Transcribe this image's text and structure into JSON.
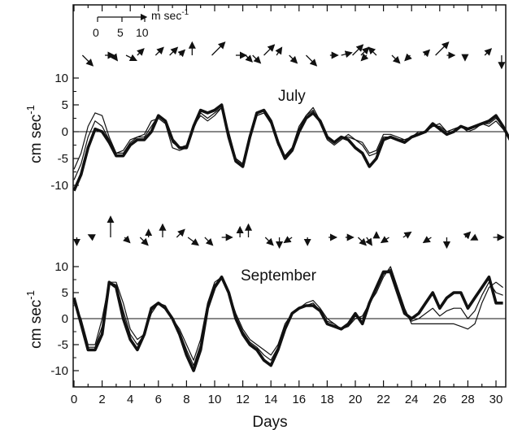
{
  "chart_data": [
    {
      "type": "line",
      "title": "July",
      "xlabel": "",
      "ylabel": "cm sec",
      "ylabel_exponent": "-1",
      "ylim": [
        -12,
        12
      ],
      "yticks": [
        10,
        5,
        0,
        -5,
        -10
      ],
      "xlim": [
        0,
        31
      ],
      "series": [
        {
          "x": [
            0,
            0.5,
            1,
            1.5,
            2,
            2.5,
            3,
            3.5,
            4,
            4.5,
            5,
            5.5,
            6,
            6.5,
            7,
            7.5,
            8,
            8.5,
            9,
            9.5,
            10,
            10.5,
            11,
            11.5,
            12,
            12.5,
            13,
            13.5,
            14,
            14.5,
            15,
            15.5,
            16,
            16.5,
            17,
            17.5,
            18,
            18.5,
            19,
            19.5,
            20,
            20.5,
            21,
            21.5,
            22,
            22.5,
            23,
            23.5,
            24,
            24.5,
            25,
            25.5,
            26,
            26.5,
            27,
            27.5,
            28,
            28.5,
            29,
            29.5,
            30,
            30.5,
            31
          ],
          "values": [
            -11,
            -8,
            -3,
            0.5,
            0,
            -2,
            -4.5,
            -4.5,
            -2.5,
            -1.5,
            -1.5,
            0,
            3,
            2,
            -1.5,
            -3,
            -3,
            1,
            4,
            3.5,
            4,
            5,
            -1,
            -5.5,
            -6.5,
            -1,
            3.5,
            4,
            2,
            -2,
            -5,
            -3.5,
            0,
            2.5,
            3.5,
            2,
            -1,
            -2,
            -1,
            -1.5,
            -3,
            -4,
            -6.5,
            -5,
            -1.5,
            -1,
            -1.5,
            -2,
            -1,
            -0.5,
            0,
            1.5,
            0.5,
            -0.5,
            0,
            1,
            0.5,
            1,
            1.5,
            2,
            3,
            1,
            -1.5
          ]
        },
        {
          "x": [
            0,
            0.5,
            1,
            1.5,
            2,
            2.5,
            3,
            3.5,
            4,
            4.5,
            5,
            5.5,
            6,
            6.5,
            7,
            7.5,
            8,
            8.5,
            9,
            9.5,
            10,
            10.5,
            11,
            11.5,
            12,
            12.5,
            13,
            13.5,
            14,
            14.5,
            15,
            15.5,
            16,
            16.5,
            17,
            17.5,
            18,
            18.5,
            19,
            19.5,
            20,
            20.5,
            21,
            21.5,
            22,
            22.5,
            23,
            23.5,
            24,
            24.5,
            25,
            25.5,
            26,
            26.5,
            27,
            27.5,
            28,
            28.5,
            29,
            29.5,
            30,
            30.5,
            31
          ],
          "values": [
            -7,
            -4,
            1,
            3.5,
            3,
            -1,
            -4,
            -3.5,
            -1.5,
            -1,
            -0.5,
            2,
            2.5,
            1.5,
            -3,
            -3.5,
            -3,
            1,
            3,
            2,
            3,
            4.5,
            0,
            -5,
            -6,
            -1.5,
            3,
            3.5,
            1.5,
            -2.5,
            -4.5,
            -3,
            1,
            3,
            4,
            1.5,
            -1.5,
            -2.5,
            -1.5,
            -0.5,
            -1.5,
            -2,
            -4,
            -3.5,
            -0.5,
            -0.5,
            -1,
            -1.5,
            -1,
            0,
            0,
            1,
            1.5,
            0,
            0.5,
            1,
            0,
            0.5,
            1.5,
            1,
            2,
            0.5,
            -1.5
          ]
        },
        {
          "x": [
            0,
            0.5,
            1,
            1.5,
            2,
            2.5,
            3,
            3.5,
            4,
            4.5,
            5,
            5.5,
            6,
            6.5,
            7,
            7.5,
            8,
            8.5,
            9,
            9.5,
            10,
            10.5,
            11,
            11.5,
            12,
            12.5,
            13,
            13.5,
            14,
            14.5,
            15,
            15.5,
            16,
            16.5,
            17,
            17.5,
            18,
            18.5,
            19,
            19.5,
            20,
            20.5,
            21,
            21.5,
            22,
            22.5,
            23,
            23.5,
            24,
            24.5,
            25,
            25.5,
            26,
            26.5,
            27,
            27.5,
            28,
            28.5,
            29,
            29.5,
            30,
            30.5,
            31
          ],
          "values": [
            -9,
            -6,
            -1,
            2,
            1,
            -1.5,
            -4,
            -4,
            -2,
            -1,
            -1,
            1,
            3,
            2,
            -2,
            -3,
            -2.5,
            1,
            3.5,
            2.5,
            3.5,
            4.5,
            -0.5,
            -5,
            -6,
            -1,
            3,
            3.5,
            2,
            -2,
            -4.5,
            -3,
            0.5,
            3,
            4.5,
            2,
            -1,
            -2,
            -1,
            -1,
            -1.5,
            -2.5,
            -4.5,
            -4,
            -1,
            -1,
            -1.5,
            -1.5,
            -1,
            -0.5,
            0,
            1,
            1,
            0,
            0.5,
            1,
            0.5,
            1,
            1.5,
            1.5,
            2.5,
            1,
            -1.5
          ]
        }
      ]
    },
    {
      "type": "line",
      "title": "September",
      "xlabel": "Days",
      "ylabel": "cm sec",
      "ylabel_exponent": "-1",
      "ylim": [
        -12,
        12
      ],
      "yticks": [
        10,
        5,
        0,
        -5,
        -10
      ],
      "xlim": [
        0,
        31
      ],
      "xticks": [
        0,
        2,
        4,
        6,
        8,
        10,
        12,
        14,
        16,
        18,
        20,
        22,
        24,
        26,
        28,
        30
      ],
      "series": [
        {
          "x": [
            0,
            0.5,
            1,
            1.5,
            2,
            2.5,
            3,
            3.5,
            4,
            4.5,
            5,
            5.5,
            6,
            6.5,
            7,
            7.5,
            8,
            8.5,
            9,
            9.5,
            10,
            10.5,
            11,
            11.5,
            12,
            12.5,
            13,
            13.5,
            14,
            14.5,
            15,
            15.5,
            16,
            16.5,
            17,
            17.5,
            18,
            18.5,
            19,
            19.5,
            20,
            20.5,
            21,
            21.5,
            22,
            22.5,
            23,
            23.5,
            24,
            24.5,
            25,
            25.5,
            26,
            26.5,
            27,
            27.5,
            28,
            28.5,
            29,
            29.5,
            30,
            30.5
          ],
          "values": [
            4,
            -1,
            -6,
            -6,
            -3,
            7,
            6,
            0,
            -4,
            -6,
            -3,
            2,
            3,
            2,
            0,
            -3,
            -7,
            -10,
            -6,
            2,
            6,
            8,
            5,
            0,
            -3,
            -5,
            -6,
            -8,
            -9,
            -6,
            -2,
            1,
            2,
            2.5,
            2.5,
            1.5,
            -1,
            -1.5,
            -2,
            -1,
            1,
            -1,
            3,
            6,
            9,
            9,
            5,
            1,
            0,
            1,
            3,
            5,
            2,
            4,
            5,
            5,
            2,
            4,
            6,
            8,
            3,
            3
          ]
        },
        {
          "x": [
            0,
            0.5,
            1,
            1.5,
            2,
            2.5,
            3,
            3.5,
            4,
            4.5,
            5,
            5.5,
            6,
            6.5,
            7,
            7.5,
            8,
            8.5,
            9,
            9.5,
            10,
            10.5,
            11,
            11.5,
            12,
            12.5,
            13,
            13.5,
            14,
            14.5,
            15,
            15.5,
            16,
            16.5,
            17,
            17.5,
            18,
            18.5,
            19,
            19.5,
            20,
            20.5,
            21,
            21.5,
            22,
            22.5,
            23,
            23.5,
            24,
            24.5,
            25,
            25.5,
            26,
            26.5,
            27,
            27.5,
            28,
            28.5,
            29,
            29.5,
            30,
            30.5
          ],
          "values": [
            3,
            0,
            -5,
            -5,
            0,
            7,
            7,
            3,
            -2,
            -4,
            -3,
            1,
            3,
            2.5,
            0,
            -2,
            -5,
            -8,
            -4,
            3,
            7,
            8,
            5,
            1,
            -2,
            -4,
            -5,
            -6,
            -7,
            -5,
            -1,
            1,
            2,
            3,
            3.5,
            2,
            0,
            -1,
            -2,
            -1.5,
            0,
            0.5,
            3,
            5,
            8,
            10,
            6,
            2,
            -1,
            -1,
            -1,
            -1,
            -1,
            -1,
            -1,
            -1.5,
            -2,
            -1,
            3,
            6,
            7,
            6
          ]
        },
        {
          "x": [
            0,
            0.5,
            1,
            1.5,
            2,
            2.5,
            3,
            3.5,
            4,
            4.5,
            5,
            5.5,
            6,
            6.5,
            7,
            7.5,
            8,
            8.5,
            9,
            9.5,
            10,
            10.5,
            11,
            11.5,
            12,
            12.5,
            13,
            13.5,
            14,
            14.5,
            15,
            15.5,
            16,
            16.5,
            17,
            17.5,
            18,
            18.5,
            19,
            19.5,
            20,
            20.5,
            21,
            21.5,
            22,
            22.5,
            23,
            23.5,
            24,
            24.5,
            25,
            25.5,
            26,
            26.5,
            27,
            27.5,
            28,
            28.5,
            29,
            29.5,
            30,
            30.5
          ],
          "values": [
            3.5,
            -0.5,
            -5.5,
            -5.5,
            -1.5,
            7,
            6.5,
            1.5,
            -3,
            -5,
            -3,
            1.5,
            3,
            2,
            0,
            -2.5,
            -6,
            -9,
            -5,
            2.5,
            6.5,
            8,
            5,
            0.5,
            -2.5,
            -4.5,
            -5.5,
            -7,
            -8,
            -5.5,
            -1.5,
            1,
            2,
            2.5,
            3,
            1.5,
            -0.5,
            -1,
            -2,
            -1.5,
            0.5,
            0,
            3,
            5.5,
            8.5,
            9.5,
            5.5,
            1.5,
            -0.5,
            0,
            1,
            2,
            0.5,
            1.5,
            2,
            2,
            0,
            1.5,
            4.5,
            7,
            5,
            4.5
          ]
        }
      ]
    }
  ],
  "wind_scale": {
    "unit": "m sec",
    "unit_exponent": "-1",
    "ticks": [
      "0",
      "5",
      "10"
    ]
  },
  "wind_vectors": {
    "july": [
      {
        "day": 0.6,
        "u": 4,
        "v": -4
      },
      {
        "day": 2.2,
        "u": 3.5,
        "v": 0
      },
      {
        "day": 2.8,
        "u": 1.5,
        "v": -2
      },
      {
        "day": 3.7,
        "u": 4,
        "v": -2
      },
      {
        "day": 4.5,
        "u": 2.5,
        "v": 2.5
      },
      {
        "day": 5.8,
        "u": 3,
        "v": 3
      },
      {
        "day": 6.8,
        "u": 3,
        "v": 3
      },
      {
        "day": 7.5,
        "u": 2,
        "v": 2
      },
      {
        "day": 8.4,
        "u": 0,
        "v": 5
      },
      {
        "day": 9.8,
        "u": 5,
        "v": 5
      },
      {
        "day": 11.5,
        "u": 4,
        "v": 0
      },
      {
        "day": 12.2,
        "u": 2.5,
        "v": -2.5
      },
      {
        "day": 12.7,
        "u": 3,
        "v": -3
      },
      {
        "day": 13.5,
        "u": 4,
        "v": 4
      },
      {
        "day": 14.4,
        "u": 2,
        "v": 3
      },
      {
        "day": 15.3,
        "u": 3,
        "v": -3
      },
      {
        "day": 16.5,
        "u": 4,
        "v": -4
      },
      {
        "day": 18.2,
        "u": 3,
        "v": 0
      },
      {
        "day": 19,
        "u": 4,
        "v": 1
      },
      {
        "day": 19.8,
        "u": 4,
        "v": 4
      },
      {
        "day": 20.4,
        "u": 3,
        "v": 3
      },
      {
        "day": 20.8,
        "u": -2,
        "v": -2
      },
      {
        "day": 21.5,
        "u": -3,
        "v": 3
      },
      {
        "day": 22.6,
        "u": 3,
        "v": -3
      },
      {
        "day": 23.9,
        "u": -2,
        "v": -2
      },
      {
        "day": 24.9,
        "u": 2,
        "v": 2
      },
      {
        "day": 25.7,
        "u": 5,
        "v": 5
      },
      {
        "day": 26.5,
        "u": 3,
        "v": 0
      },
      {
        "day": 27.8,
        "u": 0,
        "v": -2
      },
      {
        "day": 29.2,
        "u": 2.5,
        "v": 2.5
      },
      {
        "day": 30.4,
        "u": 0,
        "v": -5
      }
    ],
    "september": [
      {
        "day": 0.2,
        "u": 0,
        "v": -3
      },
      {
        "day": 1.4,
        "u": -2,
        "v": 1
      },
      {
        "day": 2.6,
        "u": 0,
        "v": 8
      },
      {
        "day": 3.6,
        "u": 2,
        "v": -2
      },
      {
        "day": 4.7,
        "u": 3,
        "v": -3
      },
      {
        "day": 5.3,
        "u": 0,
        "v": 3
      },
      {
        "day": 6.3,
        "u": 0,
        "v": 5
      },
      {
        "day": 7.3,
        "u": 3,
        "v": 3
      },
      {
        "day": 8.1,
        "u": 4,
        "v": -3
      },
      {
        "day": 9.3,
        "u": 3,
        "v": -3
      },
      {
        "day": 10.5,
        "u": 4,
        "v": 0
      },
      {
        "day": 11.8,
        "u": 0,
        "v": 4
      },
      {
        "day": 12.4,
        "u": 0,
        "v": 5
      },
      {
        "day": 13.6,
        "u": 3,
        "v": -3
      },
      {
        "day": 14.6,
        "u": 0,
        "v": -4
      },
      {
        "day": 15.5,
        "u": -3,
        "v": -2
      },
      {
        "day": 16.6,
        "u": 0,
        "v": -3
      },
      {
        "day": 18.1,
        "u": 3,
        "v": 0
      },
      {
        "day": 19.3,
        "u": 3,
        "v": 0
      },
      {
        "day": 20.2,
        "u": 3,
        "v": -3
      },
      {
        "day": 20.8,
        "u": 2,
        "v": -3
      },
      {
        "day": 21.5,
        "u": 0,
        "v": 2
      },
      {
        "day": 22.4,
        "u": -3,
        "v": -2
      },
      {
        "day": 23.4,
        "u": 3,
        "v": 2
      },
      {
        "day": 25.4,
        "u": -3,
        "v": -2
      },
      {
        "day": 26.5,
        "u": 0,
        "v": -4
      },
      {
        "day": 27.8,
        "u": 2,
        "v": 2
      },
      {
        "day": 28.6,
        "u": -2,
        "v": -1
      },
      {
        "day": 29.8,
        "u": 4,
        "v": 0
      }
    ]
  }
}
